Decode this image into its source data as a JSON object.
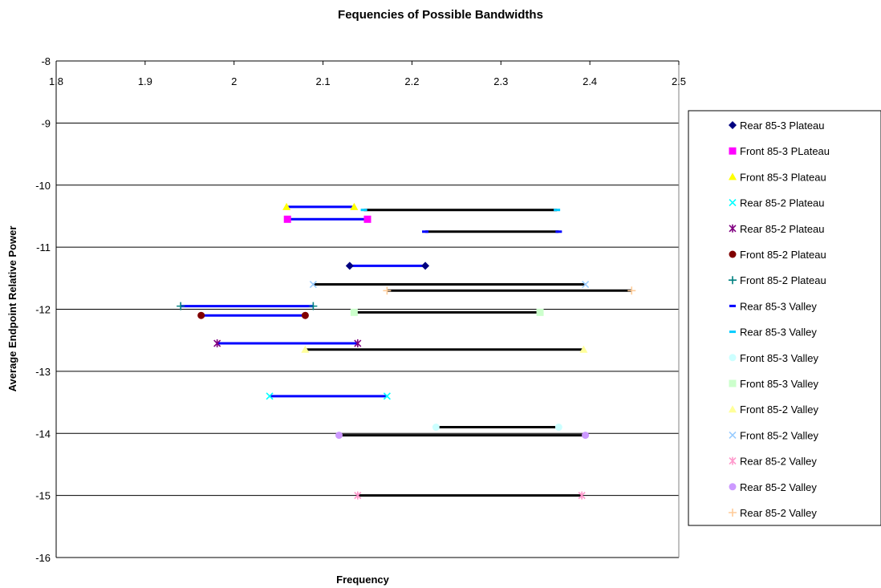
{
  "chart_data": {
    "type": "scatter",
    "title": "Fequencies of Possible Bandwidths",
    "xlabel": "Frequency",
    "ylabel": "Average Endpoint Relative Power",
    "xlim": [
      1.8,
      2.5
    ],
    "ylim": [
      -16,
      -8
    ],
    "x_ticks": [
      "1.8",
      "1.9",
      "2",
      "2.1",
      "2.2",
      "2.3",
      "2.4",
      "2.5"
    ],
    "y_ticks": [
      "-8",
      "-9",
      "-10",
      "-11",
      "-12",
      "-13",
      "-14",
      "-15",
      "-16"
    ],
    "x_axis_position": "top",
    "grid": "horizontal",
    "legend_position": "right",
    "series": [
      {
        "name": "Rear 85-3 Plateau",
        "marker": "diamond",
        "color": "#000080",
        "line": "#0000FF",
        "x": [
          2.13,
          2.215
        ],
        "y": [
          -11.3,
          -11.3
        ]
      },
      {
        "name": "Front 85-3 PLateau",
        "marker": "square",
        "color": "#FF00FF",
        "line": "#0000FF",
        "x": [
          2.06,
          2.15
        ],
        "y": [
          -10.55,
          -10.55
        ]
      },
      {
        "name": "Front 85-3 Plateau",
        "marker": "triangle",
        "color": "#FFFF00",
        "line": "#0000FF",
        "x": [
          2.059,
          2.135
        ],
        "y": [
          -10.35,
          -10.35
        ]
      },
      {
        "name": "Rear 85-2 Plateau",
        "marker": "x",
        "color": "#00FFFF",
        "line": "#0000FF",
        "x": [
          2.04,
          2.172
        ],
        "y": [
          -13.4,
          -13.4
        ]
      },
      {
        "name": "Rear 85-2 Plateau",
        "marker": "star",
        "color": "#800080",
        "line": "#0000FF",
        "x": [
          1.981,
          2.139
        ],
        "y": [
          -12.55,
          -12.55
        ]
      },
      {
        "name": "Front 85-2 Plateau",
        "marker": "circle",
        "color": "#800000",
        "line": "#0000FF",
        "x": [
          1.963,
          2.08
        ],
        "y": [
          -12.1,
          -12.1
        ]
      },
      {
        "name": "Front 85-2 Plateau",
        "marker": "plus",
        "color": "#008080",
        "line": "#0000FF",
        "x": [
          1.94,
          2.089
        ],
        "y": [
          -11.95,
          -11.95
        ]
      },
      {
        "name": "Rear 85-3 Valley",
        "marker": "dash",
        "color": "#0000FF",
        "line": "#000000",
        "x": [
          2.215,
          2.365
        ],
        "y": [
          -10.75,
          -10.75
        ]
      },
      {
        "name": "Rear 85-3 Valley",
        "marker": "dash",
        "color": "#00CCFF",
        "line": "#000000",
        "x": [
          2.146,
          2.363
        ],
        "y": [
          -10.4,
          -10.4
        ]
      },
      {
        "name": "Front 85-3 Valley",
        "marker": "circle",
        "color": "#CCFFFF",
        "line": "#000000",
        "x": [
          2.227,
          2.365
        ],
        "y": [
          -13.9,
          -13.9
        ]
      },
      {
        "name": "Front 85-3 Valley",
        "marker": "square",
        "color": "#CCFFCC",
        "line": "#000000",
        "x": [
          2.135,
          2.344
        ],
        "y": [
          -12.05,
          -12.05
        ]
      },
      {
        "name": "Front 85-2 Valley",
        "marker": "triangle",
        "color": "#FFFF99",
        "line": "#000000",
        "x": [
          2.08,
          2.393
        ],
        "y": [
          -12.65,
          -12.65
        ]
      },
      {
        "name": "Front 85-2 Valley",
        "marker": "x",
        "color": "#99CCFF",
        "line": "#000000",
        "x": [
          2.089,
          2.395
        ],
        "y": [
          -11.6,
          -11.6
        ]
      },
      {
        "name": "Rear 85-2 Valley",
        "marker": "star",
        "color": "#FF99CC",
        "line": "#000000",
        "x": [
          2.139,
          2.391
        ],
        "y": [
          -15.0,
          -15.0
        ]
      },
      {
        "name": "Rear 85-2 Valley",
        "marker": "circle",
        "color": "#CC99FF",
        "line": "#000000",
        "x": [
          2.118,
          2.395
        ],
        "y": [
          -14.03,
          -14.03
        ]
      },
      {
        "name": "Rear 85-2 Valley",
        "marker": "plus",
        "color": "#FFCC99",
        "line": "#000000",
        "x": [
          2.172,
          2.447
        ],
        "y": [
          -11.7,
          -11.7
        ]
      }
    ]
  }
}
